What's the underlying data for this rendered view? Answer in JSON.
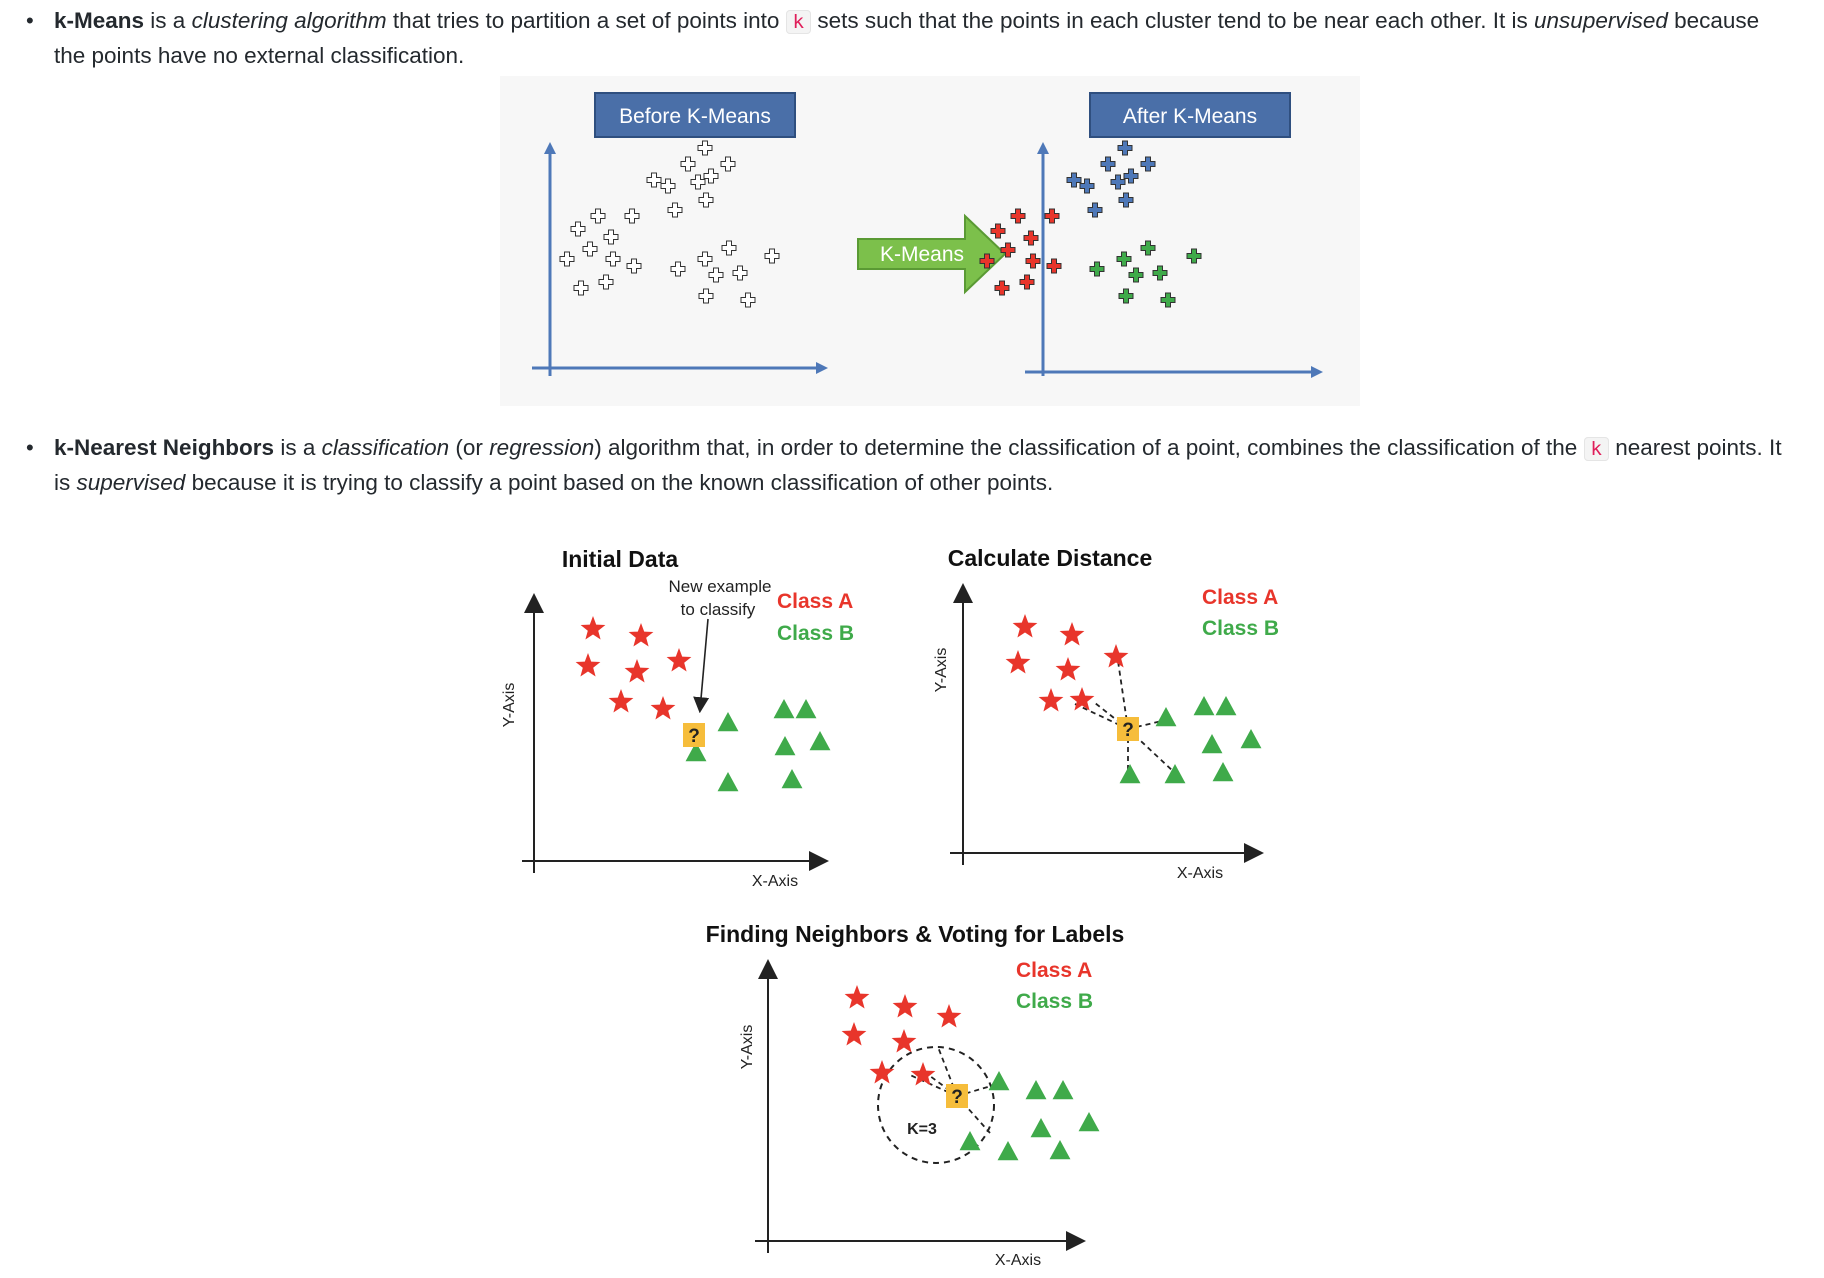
{
  "kmeans_item": {
    "term": "k-Means",
    "t1": " is a ",
    "em1": "clustering algorithm",
    "t2": " that tries to partition a set of points into ",
    "code": "k",
    "t3": " sets such that the points in each cluster tend to be near each other. It is ",
    "em2": "unsupervised",
    "t4": " because the points have no external classification."
  },
  "knn_item": {
    "term": "k-Nearest Neighbors",
    "t1": " is a ",
    "em1": "classification",
    "t2": " (or ",
    "em2": "regression",
    "t3": ") algorithm that, in order to determine the classification of a point, combines the classification of the ",
    "code": "k",
    "t4": " nearest points. It is ",
    "em3": "supervised",
    "t5": " because it is trying to classify a point based on the known classification of other points."
  },
  "kmeans_figure": {
    "before_label": "Before K-Means",
    "arrow_label": "K-Means",
    "after_label": "After K-Means"
  },
  "knn_figure": {
    "panel1_title": "Initial Data",
    "new_example_line1": "New example",
    "new_example_line2": "to classify",
    "class_a": "Class A",
    "class_b": "Class B",
    "panel2_title": "Calculate Distance",
    "panel3_title": "Finding Neighbors & Voting for Labels",
    "x_axis": "X-Axis",
    "y_axis": "Y-Axis",
    "unknown": "?",
    "k_label": "K=3"
  },
  "colors": {
    "class_a": "#e8352b",
    "class_b": "#3faa4a",
    "unknown_box": "#f6bd3b",
    "header_blue": "#4a6fa8",
    "arrow_green": "#7cc04b",
    "axis_blue": "#4e78b8"
  }
}
